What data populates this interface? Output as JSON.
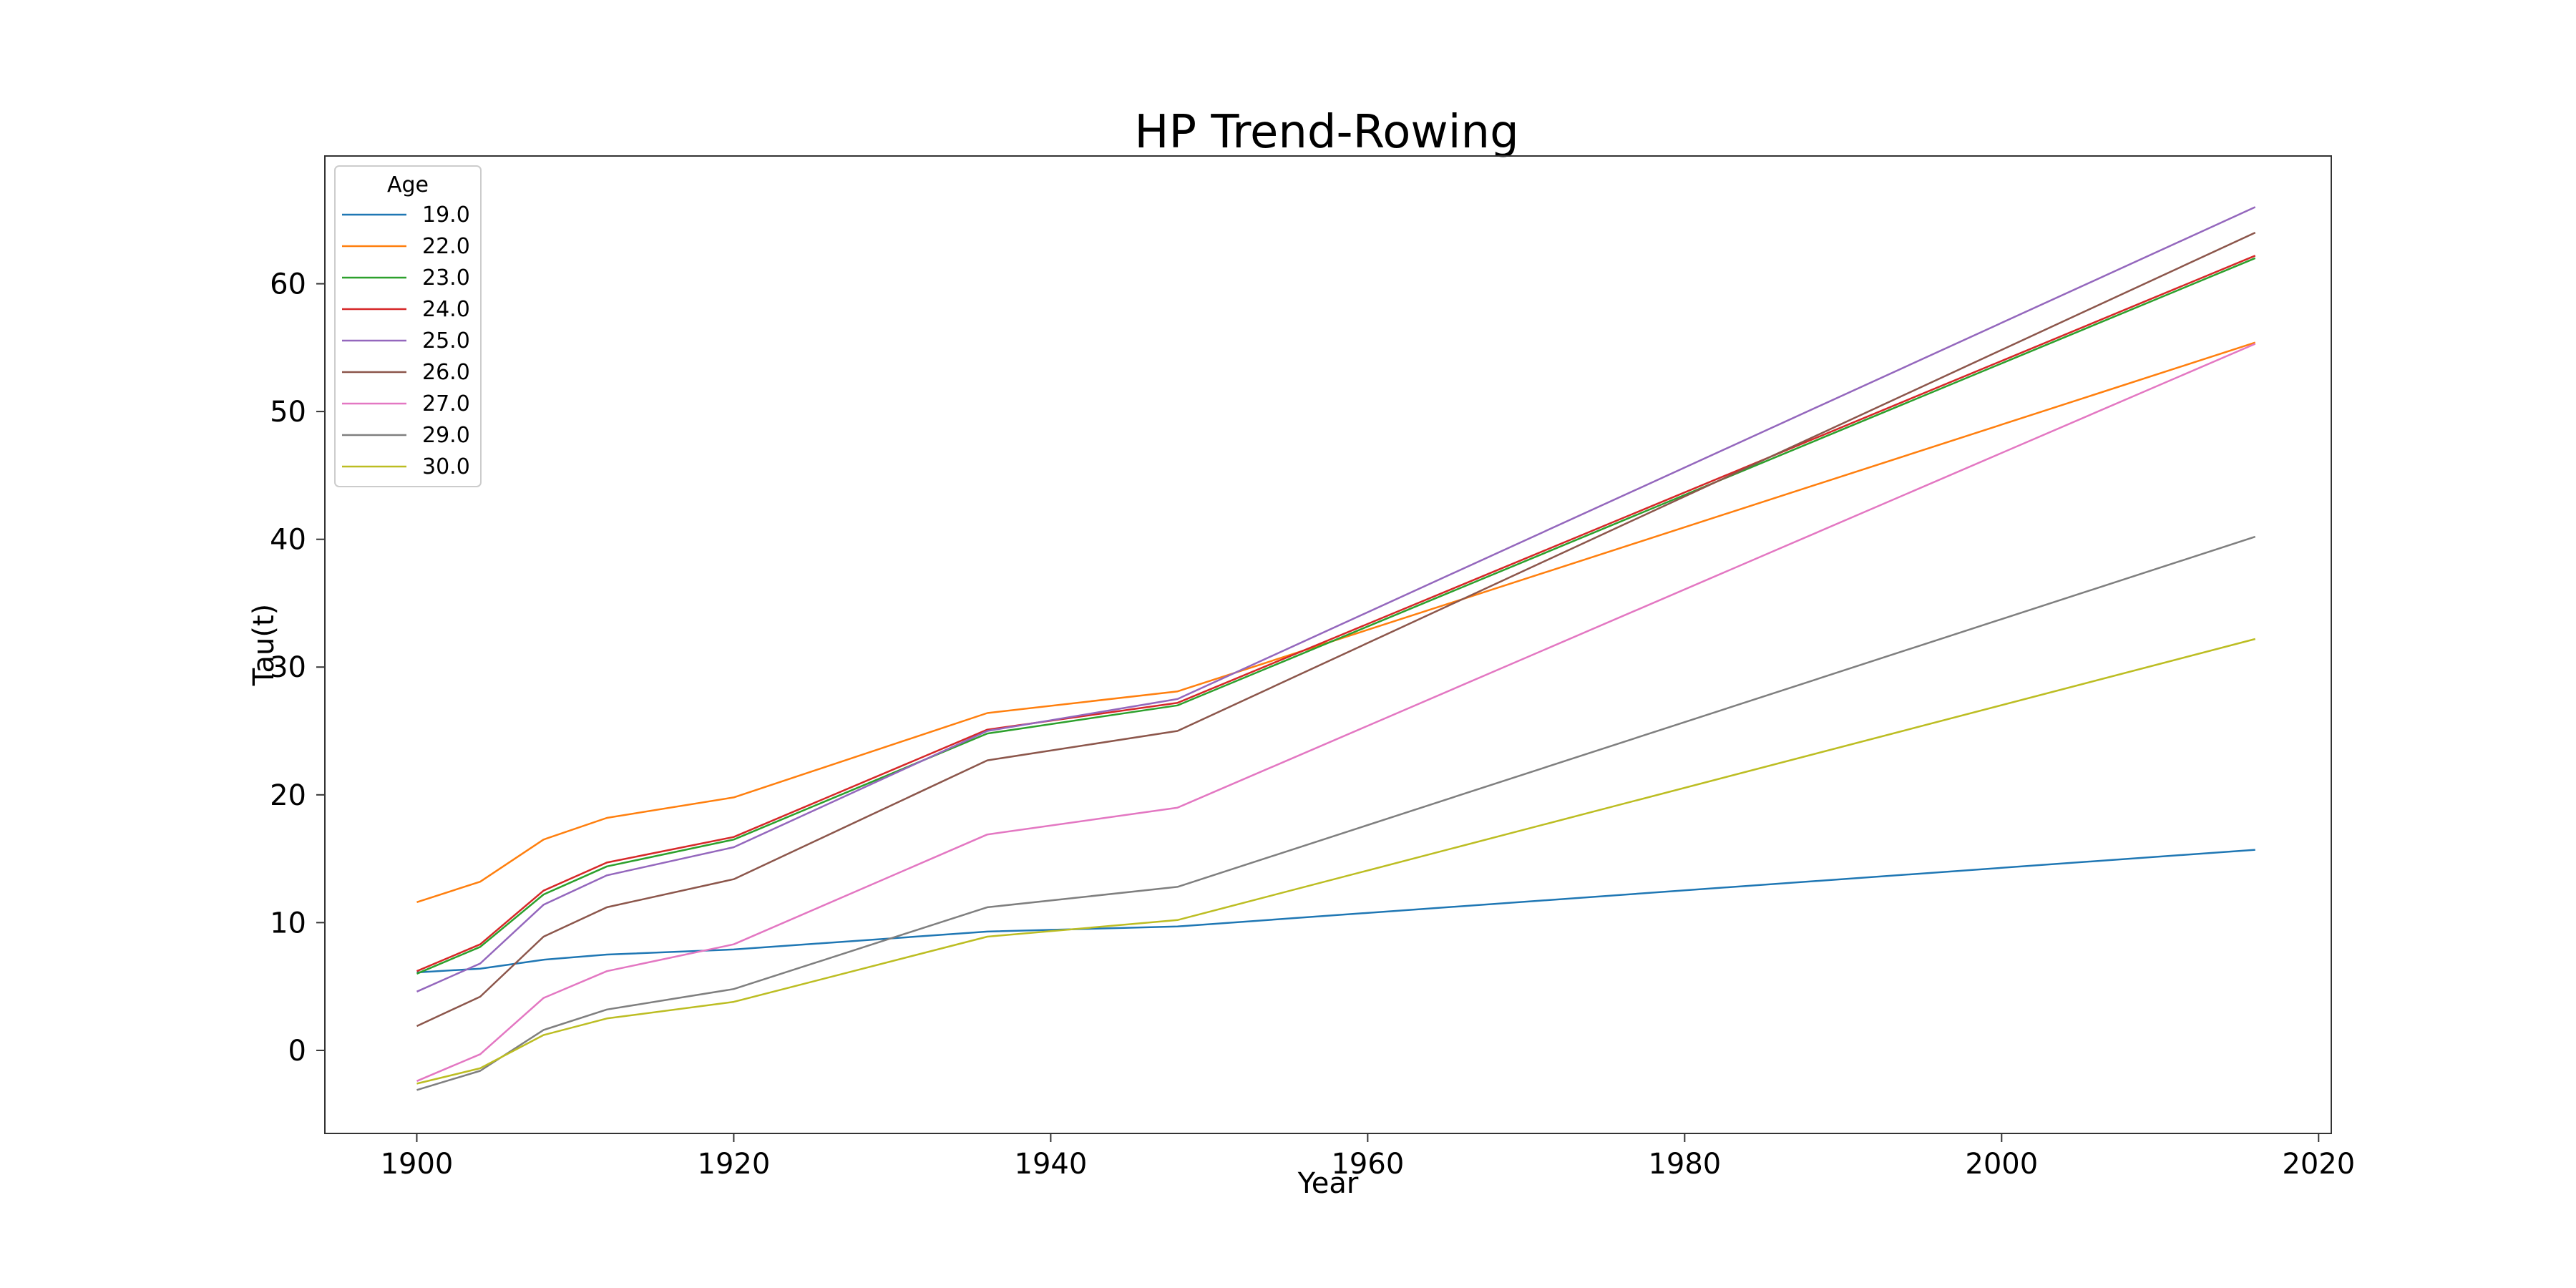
{
  "chart_data": {
    "type": "line",
    "title": "HP Trend-Rowing",
    "xlabel": "Year",
    "ylabel": "Tau(t)",
    "xlim": [
      1894.2,
      2020.8
    ],
    "ylim": [
      -6.5,
      70
    ],
    "xticks": [
      1900,
      1920,
      1940,
      1960,
      1980,
      2000,
      2020
    ],
    "yticks": [
      0,
      10,
      20,
      30,
      40,
      50,
      60
    ],
    "grid": false,
    "legend": {
      "title": "Age",
      "placement": "top-left"
    },
    "x": [
      1900,
      1904,
      1908,
      1912,
      1920,
      1936,
      1948,
      2016
    ],
    "series": [
      {
        "name": "19.0",
        "color": "#1f77b4",
        "values": [
          6.1,
          6.4,
          7.1,
          7.5,
          7.9,
          9.3,
          9.7,
          15.7
        ]
      },
      {
        "name": "22.0",
        "color": "#ff7f0e",
        "values": [
          11.6,
          13.2,
          16.5,
          18.2,
          19.8,
          26.4,
          28.1,
          55.4
        ]
      },
      {
        "name": "23.0",
        "color": "#2ca02c",
        "values": [
          6.0,
          8.1,
          12.2,
          14.4,
          16.5,
          24.8,
          27.0,
          62.0
        ]
      },
      {
        "name": "24.0",
        "color": "#d62728",
        "values": [
          6.2,
          8.3,
          12.5,
          14.7,
          16.7,
          25.1,
          27.2,
          62.2
        ]
      },
      {
        "name": "25.0",
        "color": "#9467bd",
        "values": [
          4.6,
          6.8,
          11.4,
          13.7,
          15.9,
          25.0,
          27.5,
          66.0
        ]
      },
      {
        "name": "26.0",
        "color": "#8c564b",
        "values": [
          1.9,
          4.2,
          8.9,
          11.2,
          13.4,
          22.7,
          25.0,
          64.0
        ]
      },
      {
        "name": "27.0",
        "color": "#e377c2",
        "values": [
          -2.4,
          -0.3,
          4.1,
          6.2,
          8.3,
          16.9,
          19.0,
          55.3
        ]
      },
      {
        "name": "29.0",
        "color": "#7f7f7f",
        "values": [
          -3.1,
          -1.6,
          1.6,
          3.2,
          4.8,
          11.2,
          12.8,
          40.2
        ]
      },
      {
        "name": "30.0",
        "color": "#bcbd22",
        "values": [
          -2.6,
          -1.4,
          1.2,
          2.5,
          3.8,
          8.9,
          10.2,
          32.2
        ]
      }
    ]
  }
}
